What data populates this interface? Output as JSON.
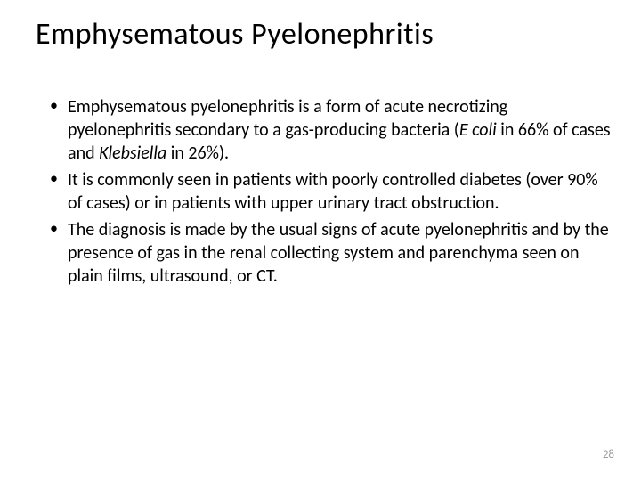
{
  "slide": {
    "title": "Emphysematous Pyelonephritis",
    "title_fontsize": 34,
    "title_color": "#000000",
    "body_fontsize": 20,
    "body_color": "#000000",
    "background_color": "#ffffff",
    "bullets": [
      {
        "segments": [
          {
            "text": "Emphysematous pyelonephritis is a form of acute necrotizing pyelonephritis secondary to a gas-producing bacteria (",
            "italic": false
          },
          {
            "text": "E coli",
            "italic": true
          },
          {
            "text": " in 66% of cases and ",
            "italic": false
          },
          {
            "text": "Klebsiella",
            "italic": true
          },
          {
            "text": " in 26%).",
            "italic": false
          }
        ]
      },
      {
        "segments": [
          {
            "text": "It is commonly seen in patients with poorly controlled diabetes (over 90% of cases) or in patients with upper urinary tract obstruction.",
            "italic": false
          }
        ]
      },
      {
        "segments": [
          {
            "text": " The diagnosis is made by the usual signs of acute pyelonephritis and by the presence of gas in the renal collecting system and parenchyma seen on plain films, ultrasound, or CT.",
            "italic": false
          }
        ]
      }
    ],
    "page_number": "28",
    "page_number_color": "#9a9a9a",
    "page_number_fontsize": 13
  }
}
